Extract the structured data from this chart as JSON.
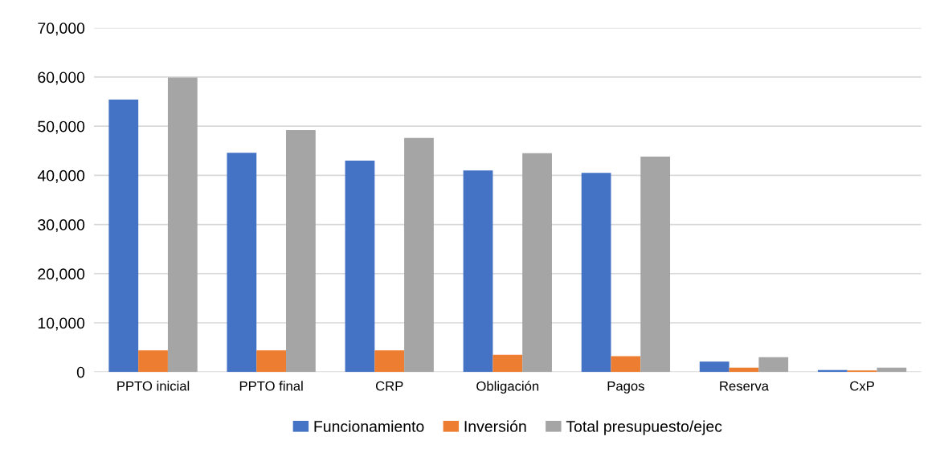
{
  "chart_data": {
    "type": "bar",
    "categories": [
      "PPTO inicial",
      "PPTO final",
      "CRP",
      "Obligación",
      "Pagos",
      "Reserva",
      "CxP"
    ],
    "series": [
      {
        "name": "Funcionamiento",
        "color": "#4472c4",
        "values": [
          55400,
          44600,
          43000,
          41000,
          40500,
          2100,
          400
        ]
      },
      {
        "name": "Inversión",
        "color": "#ed7d31",
        "values": [
          4400,
          4400,
          4400,
          3500,
          3200,
          900,
          300
        ]
      },
      {
        "name": "Total presupuesto/ejec",
        "color": "#a5a5a5",
        "values": [
          59900,
          49200,
          47600,
          44500,
          43800,
          3000,
          900
        ]
      }
    ],
    "ylim": [
      0,
      70000
    ],
    "yticks": [
      {
        "value": 0,
        "label": "0"
      },
      {
        "value": 10000,
        "label": "10,000"
      },
      {
        "value": 20000,
        "label": "20,000"
      },
      {
        "value": 30000,
        "label": "30,000"
      },
      {
        "value": 40000,
        "label": "40,000"
      },
      {
        "value": 50000,
        "label": "50,000"
      },
      {
        "value": 60000,
        "label": "60,000"
      },
      {
        "value": 70000,
        "label": "70,000"
      }
    ],
    "grid": "y",
    "legend": "bottom"
  }
}
